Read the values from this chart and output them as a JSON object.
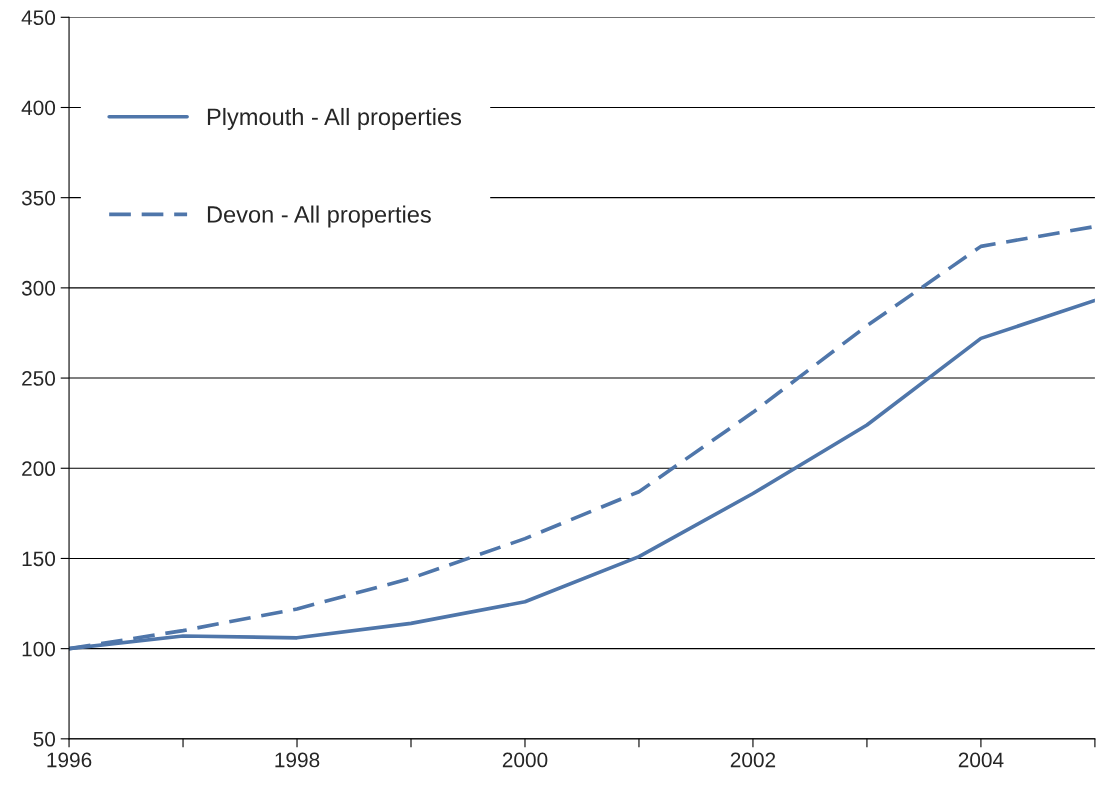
{
  "chart_data": {
    "type": "line",
    "x": [
      1996,
      1997,
      1998,
      1999,
      2000,
      2001,
      2002,
      2003,
      2004,
      2005
    ],
    "series": [
      {
        "name": "Plymouth - All properties",
        "color": "#4f76aa",
        "line_style": "solid",
        "values": [
          100,
          107,
          106,
          114,
          126,
          151,
          186,
          224,
          272,
          293
        ]
      },
      {
        "name": "Devon - All properties",
        "color": "#4f76aa",
        "line_style": "dashed",
        "values": [
          100,
          110,
          122,
          139,
          161,
          187,
          231,
          279,
          323,
          334
        ]
      }
    ],
    "xlim": [
      1996,
      2005
    ],
    "xticks": [
      1996,
      {
        "value": 1997,
        "label": null
      },
      1998,
      {
        "value": 1999,
        "label": null
      },
      2000,
      {
        "value": 2001,
        "label": null
      },
      2002,
      {
        "value": 2003,
        "label": null
      },
      2004,
      {
        "value": 2005,
        "label": null
      }
    ],
    "ylim": [
      50,
      450
    ],
    "yticks": [
      50,
      100,
      150,
      200,
      250,
      300,
      350,
      400,
      450
    ],
    "grid": "y",
    "legend": "top left",
    "marker": "none"
  }
}
